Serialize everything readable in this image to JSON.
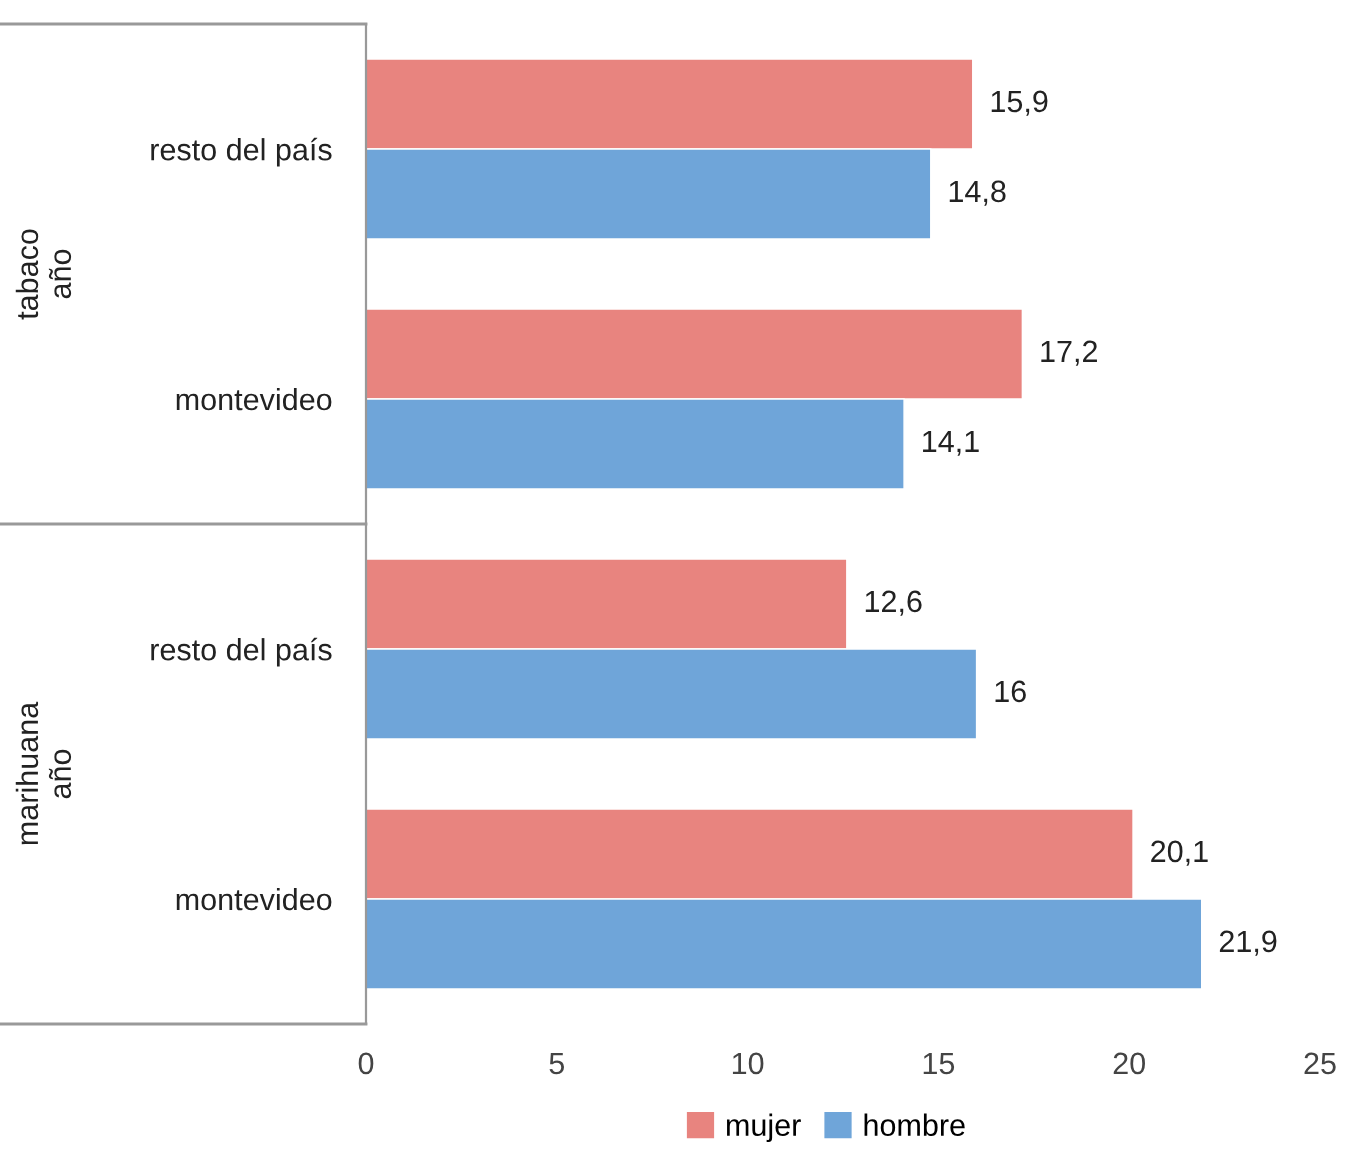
{
  "chart_data": {
    "type": "bar",
    "orientation": "horizontal",
    "categories": [
      "resto del país",
      "montevideo",
      "resto del país",
      "montevideo"
    ],
    "series": [
      {
        "name": "mujer",
        "color": "#e8847f",
        "values": [
          15.9,
          17.2,
          12.6,
          20.1
        ],
        "value_labels": [
          "15,9",
          "17,2",
          "12,6",
          "20,1"
        ]
      },
      {
        "name": "hombre",
        "color": "#6fa5d9",
        "values": [
          14.8,
          14.1,
          16,
          21.9
        ],
        "value_labels": [
          "14,8",
          "14,1",
          "16",
          "21,9"
        ]
      }
    ],
    "annotations": [
      "tabaco\naño",
      "marihuana\naño"
    ],
    "xlim": [
      0,
      25
    ],
    "xticks": [
      0,
      5,
      10,
      15,
      20,
      25
    ],
    "grid": false,
    "legend": "bottom"
  }
}
